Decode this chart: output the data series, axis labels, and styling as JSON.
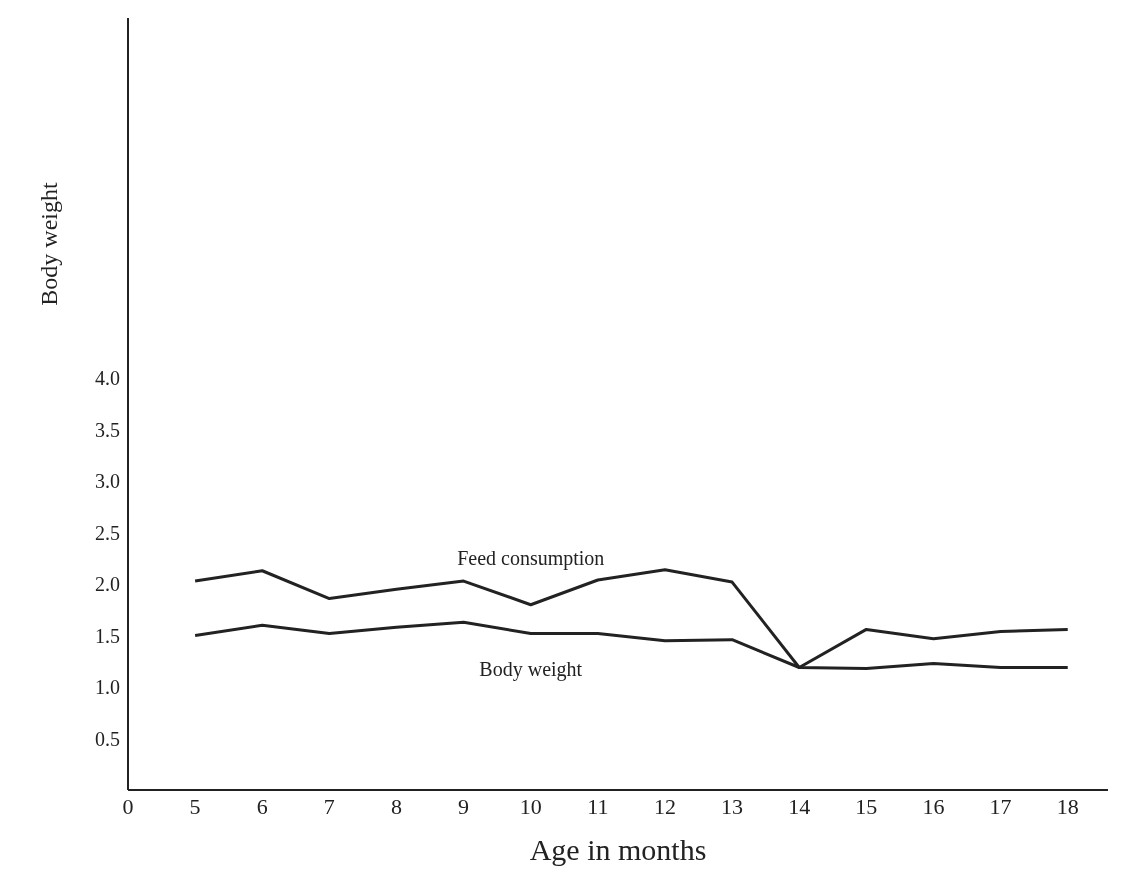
{
  "chart_data": {
    "type": "line",
    "xlabel": "Age in months",
    "ylabel": "Body weight",
    "categories": [
      "0",
      "5",
      "6",
      "7",
      "8",
      "9",
      "10",
      "11",
      "12",
      "13",
      "14",
      "15",
      "16",
      "17",
      "18"
    ],
    "series": [
      {
        "name": "Feed consumption",
        "color": "#222222",
        "values": [
          null,
          2.03,
          2.13,
          1.86,
          1.95,
          2.03,
          1.8,
          2.04,
          2.14,
          2.02,
          1.19,
          1.56,
          1.47,
          1.54,
          1.56
        ]
      },
      {
        "name": "Body weight",
        "color": "#222222",
        "values": [
          null,
          1.5,
          1.6,
          1.52,
          1.58,
          1.63,
          1.52,
          1.52,
          1.45,
          1.46,
          1.19,
          1.18,
          1.23,
          1.19,
          1.19
        ]
      }
    ],
    "ylim": [
      0,
      7.5
    ],
    "yticks": [
      {
        "value": 0.5,
        "label": "0.5"
      },
      {
        "value": 1,
        "label": "1.0"
      },
      {
        "value": 1.5,
        "label": "1.5"
      },
      {
        "value": 2,
        "label": "2.0"
      },
      {
        "value": 2.5,
        "label": "2.5"
      },
      {
        "value": 3,
        "label": "3.0"
      },
      {
        "value": 3.5,
        "label": "3.5"
      },
      {
        "value": 4,
        "label": "4.0"
      }
    ],
    "grid": false,
    "legend": false,
    "marker": "none",
    "line_style": "solid"
  }
}
